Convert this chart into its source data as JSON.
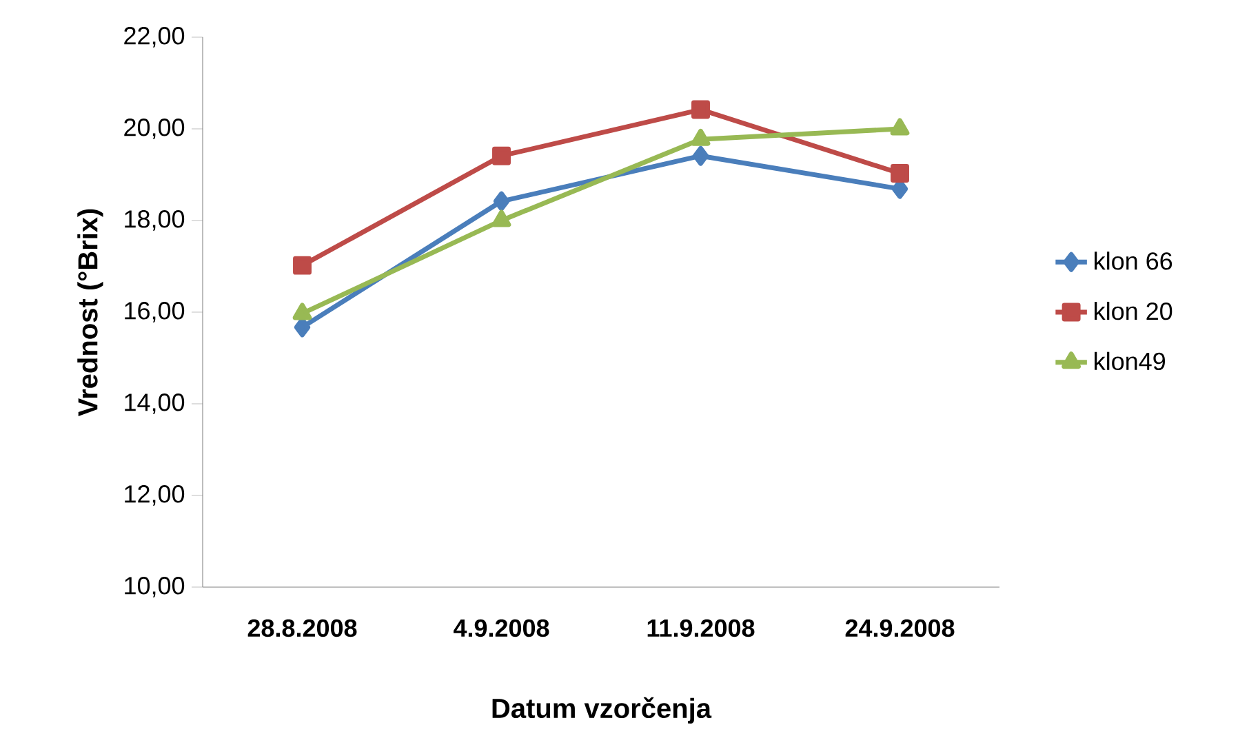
{
  "chart_data": {
    "type": "line",
    "xlabel": "Datum vzorčenja",
    "ylabel": "Vrednost (°Brix)",
    "categories": [
      "28.8.2008",
      "4.9.2008",
      "11.9.2008",
      "24.9.2008"
    ],
    "series": [
      {
        "name": "klon 66",
        "color": "#4a7ebb",
        "marker": "diamond",
        "values": [
          15.67,
          18.42,
          19.41,
          18.69
        ]
      },
      {
        "name": "klon 20",
        "color": "#be4b48",
        "marker": "square",
        "values": [
          17.02,
          19.41,
          20.42,
          19.03
        ]
      },
      {
        "name": "klon49",
        "color": "#98b954",
        "marker": "triangle",
        "values": [
          15.97,
          18.0,
          19.77,
          20.0
        ]
      }
    ],
    "ylim": [
      10,
      22
    ],
    "yticks": [
      {
        "value": 10,
        "label": "10,00"
      },
      {
        "value": 12,
        "label": "12,00"
      },
      {
        "value": 14,
        "label": "14,00"
      },
      {
        "value": 16,
        "label": "16,00"
      },
      {
        "value": 18,
        "label": "18,00"
      },
      {
        "value": 20,
        "label": "20,00"
      },
      {
        "value": 22,
        "label": "22,00"
      }
    ],
    "grid": false,
    "legend": "right",
    "line_style": "solid"
  }
}
